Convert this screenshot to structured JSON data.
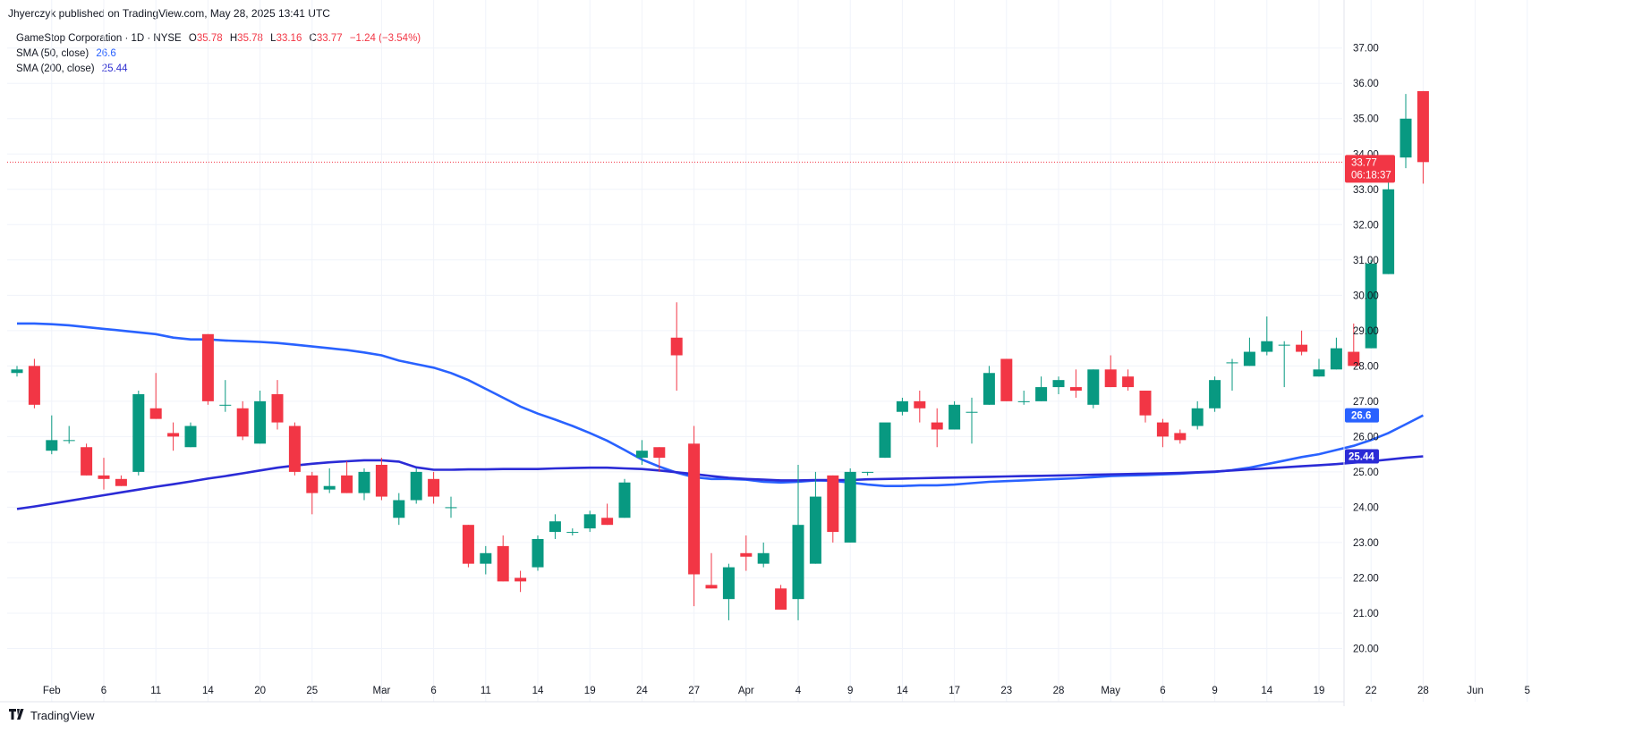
{
  "header": {
    "published": "Jhyerczyk published on TradingView.com, May 28, 2025 13:41 UTC"
  },
  "legend": {
    "symbol": "GameStop Corporation · 1D · NYSE",
    "o_label": "O",
    "o_value": "35.78",
    "h_label": "H",
    "h_value": "35.78",
    "l_label": "L",
    "l_value": "33.16",
    "c_label": "C",
    "c_value": "33.77",
    "change": "−1.24 (−3.54%)",
    "sma50_label": "SMA (50, close)",
    "sma50_value": "26.6",
    "sma200_label": "SMA (200, close)",
    "sma200_value": "25.44"
  },
  "price_tag": {
    "price": "33.77",
    "countdown": "06:18:37"
  },
  "footer": {
    "brand": "TradingView"
  },
  "colors": {
    "up": "#089981",
    "down": "#f23645",
    "sma50": "#2962ff",
    "sma200": "#2b2bd6",
    "grid": "#f0f3fa"
  },
  "chart_data": {
    "type": "candlestick",
    "ylim": [
      19,
      37.6
    ],
    "yticks": [
      "20.00",
      "21.00",
      "22.00",
      "23.00",
      "24.00",
      "25.00",
      "26.00",
      "27.00",
      "28.00",
      "29.00",
      "30.00",
      "31.00",
      "32.00",
      "33.00",
      "34.00",
      "35.00",
      "36.00",
      "37.00"
    ],
    "xticks": [
      {
        "label": "Feb",
        "i": 2
      },
      {
        "label": "6",
        "i": 5
      },
      {
        "label": "11",
        "i": 8
      },
      {
        "label": "14",
        "i": 11
      },
      {
        "label": "20",
        "i": 14
      },
      {
        "label": "25",
        "i": 17
      },
      {
        "label": "Mar",
        "i": 21
      },
      {
        "label": "6",
        "i": 24
      },
      {
        "label": "11",
        "i": 27
      },
      {
        "label": "14",
        "i": 30
      },
      {
        "label": "19",
        "i": 33
      },
      {
        "label": "24",
        "i": 36
      },
      {
        "label": "27",
        "i": 39
      },
      {
        "label": "Apr",
        "i": 42
      },
      {
        "label": "4",
        "i": 45
      },
      {
        "label": "9",
        "i": 48
      },
      {
        "label": "14",
        "i": 51
      },
      {
        "label": "17",
        "i": 54
      },
      {
        "label": "23",
        "i": 57
      },
      {
        "label": "28",
        "i": 60
      },
      {
        "label": "May",
        "i": 63
      },
      {
        "label": "6",
        "i": 66
      },
      {
        "label": "9",
        "i": 69
      },
      {
        "label": "14",
        "i": 72
      },
      {
        "label": "19",
        "i": 75
      },
      {
        "label": "22",
        "i": 78
      },
      {
        "label": "28",
        "i": 81
      },
      {
        "label": "Jun",
        "i": 84
      },
      {
        "label": "5",
        "i": 87
      }
    ],
    "candles": [
      [
        27.8,
        28.0,
        27.7,
        27.9
      ],
      [
        28.0,
        28.2,
        26.8,
        26.9
      ],
      [
        25.6,
        26.6,
        25.5,
        25.9
      ],
      [
        25.9,
        26.3,
        25.8,
        25.9
      ],
      [
        25.7,
        25.8,
        24.9,
        24.9
      ],
      [
        24.9,
        25.4,
        24.5,
        24.8
      ],
      [
        24.8,
        24.9,
        24.6,
        24.6
      ],
      [
        25.0,
        27.3,
        24.9,
        27.2
      ],
      [
        26.8,
        27.8,
        26.5,
        26.5
      ],
      [
        26.1,
        26.4,
        25.6,
        26.0
      ],
      [
        25.7,
        26.4,
        25.7,
        26.3
      ],
      [
        28.9,
        28.9,
        26.9,
        27.0
      ],
      [
        26.9,
        27.6,
        26.7,
        26.9
      ],
      [
        26.8,
        27.0,
        25.9,
        26.0
      ],
      [
        25.8,
        27.3,
        25.8,
        27.0
      ],
      [
        27.2,
        27.6,
        26.2,
        26.4
      ],
      [
        26.3,
        26.4,
        24.9,
        25.0
      ],
      [
        24.9,
        25.0,
        23.8,
        24.4
      ],
      [
        24.5,
        25.1,
        24.4,
        24.6
      ],
      [
        24.9,
        25.3,
        24.4,
        24.4
      ],
      [
        24.4,
        25.1,
        24.2,
        25.0
      ],
      [
        25.2,
        25.4,
        24.2,
        24.3
      ],
      [
        23.7,
        24.4,
        23.5,
        24.2
      ],
      [
        24.2,
        25.1,
        24.1,
        25.0
      ],
      [
        24.8,
        25.0,
        24.1,
        24.3
      ],
      [
        24.0,
        24.3,
        23.7,
        24.0
      ],
      [
        23.5,
        23.5,
        22.3,
        22.4
      ],
      [
        22.4,
        22.9,
        22.1,
        22.7
      ],
      [
        22.9,
        23.2,
        21.9,
        21.9
      ],
      [
        22.0,
        22.2,
        21.6,
        21.9
      ],
      [
        22.3,
        23.2,
        22.2,
        23.1
      ],
      [
        23.3,
        23.8,
        23.1,
        23.6
      ],
      [
        23.3,
        23.4,
        23.2,
        23.3
      ],
      [
        23.4,
        23.9,
        23.3,
        23.8
      ],
      [
        23.7,
        24.1,
        23.5,
        23.5
      ],
      [
        23.7,
        24.8,
        23.7,
        24.7
      ],
      [
        25.4,
        25.9,
        25.2,
        25.6
      ],
      [
        25.7,
        25.7,
        25.0,
        25.4
      ],
      [
        28.8,
        29.8,
        27.3,
        28.3
      ],
      [
        25.8,
        26.3,
        21.2,
        22.1
      ],
      [
        21.8,
        22.7,
        21.7,
        21.7
      ],
      [
        21.4,
        22.4,
        20.8,
        22.3
      ],
      [
        22.7,
        23.2,
        22.2,
        22.6
      ],
      [
        22.4,
        23.0,
        22.3,
        22.7
      ],
      [
        21.7,
        21.8,
        21.1,
        21.1
      ],
      [
        21.4,
        25.2,
        20.8,
        23.5
      ],
      [
        22.4,
        25.0,
        22.4,
        24.3
      ],
      [
        24.9,
        24.9,
        23.0,
        23.3
      ],
      [
        23.0,
        25.1,
        23.0,
        25.0
      ],
      [
        25.0,
        25.0,
        24.9,
        25.0
      ],
      [
        25.4,
        26.3,
        25.4,
        26.4
      ],
      [
        26.7,
        27.1,
        26.6,
        27.0
      ],
      [
        27.0,
        27.3,
        26.4,
        26.8
      ],
      [
        26.4,
        26.8,
        25.7,
        26.2
      ],
      [
        26.2,
        27.0,
        26.2,
        26.9
      ],
      [
        26.7,
        27.1,
        25.8,
        26.7
      ],
      [
        26.9,
        28.0,
        26.9,
        27.8
      ],
      [
        28.2,
        28.2,
        27.0,
        27.0
      ],
      [
        27.0,
        27.3,
        26.9,
        27.0
      ],
      [
        27.0,
        27.7,
        27.0,
        27.4
      ],
      [
        27.4,
        27.7,
        27.2,
        27.6
      ],
      [
        27.4,
        27.9,
        27.1,
        27.3
      ],
      [
        26.9,
        27.9,
        26.8,
        27.9
      ],
      [
        27.9,
        28.3,
        27.4,
        27.4
      ],
      [
        27.7,
        27.9,
        27.3,
        27.4
      ],
      [
        27.3,
        27.3,
        26.4,
        26.6
      ],
      [
        26.4,
        26.5,
        25.7,
        26.0
      ],
      [
        26.1,
        26.2,
        25.8,
        25.9
      ],
      [
        26.3,
        27.0,
        26.2,
        26.8
      ],
      [
        26.8,
        27.7,
        26.7,
        27.6
      ],
      [
        28.1,
        28.2,
        27.3,
        28.1
      ],
      [
        28.0,
        28.8,
        28.0,
        28.4
      ],
      [
        28.4,
        29.4,
        28.3,
        28.7
      ],
      [
        28.6,
        28.7,
        27.4,
        28.6
      ],
      [
        28.6,
        29.0,
        28.3,
        28.4
      ],
      [
        27.7,
        28.2,
        27.7,
        27.9
      ],
      [
        27.9,
        28.8,
        27.9,
        28.5
      ],
      [
        28.4,
        29.2,
        28.0,
        28.0
      ],
      [
        28.5,
        31.0,
        28.5,
        30.9
      ],
      [
        30.6,
        33.2,
        30.6,
        33.0
      ],
      [
        33.9,
        35.7,
        33.6,
        35.0
      ],
      [
        35.78,
        35.78,
        33.16,
        33.77
      ]
    ],
    "sma50": [
      29.2,
      29.2,
      29.18,
      29.15,
      29.1,
      29.05,
      29.0,
      28.95,
      28.9,
      28.8,
      28.75,
      28.75,
      28.72,
      28.7,
      28.68,
      28.65,
      28.6,
      28.55,
      28.5,
      28.45,
      28.38,
      28.3,
      28.15,
      28.05,
      27.95,
      27.8,
      27.6,
      27.35,
      27.1,
      26.85,
      26.65,
      26.48,
      26.3,
      26.1,
      25.88,
      25.62,
      25.35,
      25.15,
      24.98,
      24.85,
      24.8,
      24.8,
      24.78,
      24.72,
      24.7,
      24.72,
      24.76,
      24.75,
      24.7,
      24.64,
      24.6,
      24.6,
      24.62,
      24.62,
      24.64,
      24.68,
      24.72,
      24.74,
      24.76,
      24.78,
      24.8,
      24.82,
      24.85,
      24.88,
      24.9,
      24.91,
      24.93,
      24.95,
      24.98,
      25.0,
      25.05,
      25.12,
      25.22,
      25.32,
      25.42,
      25.5,
      25.62,
      25.74,
      25.9,
      26.1,
      26.35,
      26.6
    ],
    "sma200": [
      23.95,
      24.02,
      24.1,
      24.18,
      24.26,
      24.34,
      24.42,
      24.5,
      24.58,
      24.65,
      24.73,
      24.81,
      24.88,
      24.96,
      25.04,
      25.12,
      25.18,
      25.23,
      25.27,
      25.3,
      25.33,
      25.33,
      25.29,
      25.13,
      25.06,
      25.06,
      25.07,
      25.07,
      25.08,
      25.08,
      25.08,
      25.1,
      25.11,
      25.12,
      25.12,
      25.1,
      25.08,
      25.04,
      24.99,
      24.94,
      24.88,
      24.83,
      24.8,
      24.78,
      24.76,
      24.76,
      24.77,
      24.77,
      24.77,
      24.79,
      24.8,
      24.81,
      24.82,
      24.83,
      24.84,
      24.85,
      24.86,
      24.87,
      24.88,
      24.89,
      24.9,
      24.91,
      24.92,
      24.93,
      24.94,
      24.95,
      24.96,
      24.97,
      24.99,
      25.01,
      25.04,
      25.07,
      25.1,
      25.13,
      25.16,
      25.19,
      25.22,
      25.26,
      25.3,
      25.35,
      25.4,
      25.44
    ]
  }
}
